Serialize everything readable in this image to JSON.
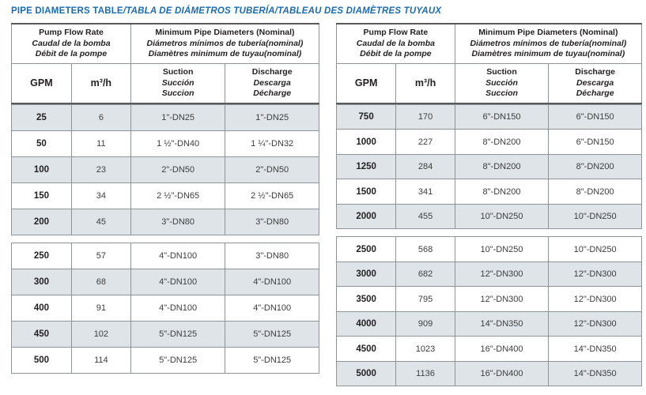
{
  "title": {
    "main": "PIPE DIAMETERS TABLE",
    "rest": "/TABLA DE DIÁMETROS TUBERÍA/TABLEAU DES DIAMÈTRES TUYAUX"
  },
  "colors": {
    "title_blue": "#1c6bad",
    "row_shade": "#dfe4e8",
    "border_thin": "#8f9496",
    "border_thick": "#58595b"
  },
  "header": {
    "flow_rate": [
      "Pump Flow Rate",
      "Caudal de la bomba",
      "Débit de la pompe"
    ],
    "diameters": [
      "Minimum Pipe Diameters (Nominal)",
      "Diámetros mínimos de tubería(nominal)",
      "Diamètres minimum de tuyau(nominal)"
    ],
    "gpm": "GPM",
    "m3h": "m³/h",
    "suction": [
      "Suction",
      "Succión",
      "Succion"
    ],
    "discharge": [
      "Discharge",
      "Descarga",
      "Décharge"
    ]
  },
  "left": {
    "block1": [
      [
        "25",
        "6",
        "1\"-DN25",
        "1\"-DN25"
      ],
      [
        "50",
        "11",
        "1 ½\"-DN40",
        "1 ¼\"-DN32"
      ],
      [
        "100",
        "23",
        "2\"-DN50",
        "2\"-DN50"
      ],
      [
        "150",
        "34",
        "2 ½\"-DN65",
        "2 ½\"-DN65"
      ],
      [
        "200",
        "45",
        "3\"-DN80",
        "3\"-DN80"
      ]
    ],
    "block2": [
      [
        "250",
        "57",
        "4\"-DN100",
        "3\"-DN80"
      ],
      [
        "300",
        "68",
        "4\"-DN100",
        "4\"-DN100"
      ],
      [
        "400",
        "91",
        "4\"-DN100",
        "4\"-DN100"
      ],
      [
        "450",
        "102",
        "5\"-DN125",
        "5\"-DN125"
      ],
      [
        "500",
        "114",
        "5\"-DN125",
        "5\"-DN125"
      ]
    ]
  },
  "right": {
    "block1": [
      [
        "750",
        "170",
        "6\"-DN150",
        "6\"-DN150"
      ],
      [
        "1000",
        "227",
        "8\"-DN200",
        "6\"-DN150"
      ],
      [
        "1250",
        "284",
        "8\"-DN200",
        "8\"-DN200"
      ],
      [
        "1500",
        "341",
        "8\"-DN200",
        "8\"-DN200"
      ],
      [
        "2000",
        "455",
        "10\"-DN250",
        "10\"-DN250"
      ]
    ],
    "block2": [
      [
        "2500",
        "568",
        "10\"-DN250",
        "10\"-DN250"
      ],
      [
        "3000",
        "682",
        "12\"-DN300",
        "12\"-DN300"
      ],
      [
        "3500",
        "795",
        "12\"-DN300",
        "12\"-DN300"
      ],
      [
        "4000",
        "909",
        "14\"-DN350",
        "12\"-DN300"
      ],
      [
        "4500",
        "1023",
        "16\"-DN400",
        "14\"-DN350"
      ],
      [
        "5000",
        "1136",
        "16\"-DN400",
        "14\"-DN350"
      ]
    ]
  }
}
